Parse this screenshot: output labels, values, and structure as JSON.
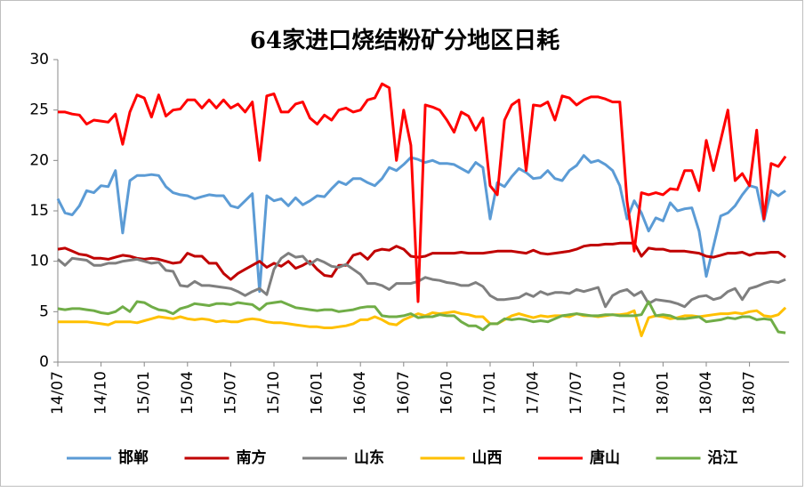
{
  "chart_data": {
    "type": "line",
    "title": "64家进口烧结粉矿分地区日耗",
    "categories": [
      "14/07",
      null,
      null,
      null,
      null,
      null,
      "14/10",
      null,
      null,
      null,
      null,
      null,
      "15/01",
      null,
      null,
      null,
      null,
      null,
      "15/04",
      null,
      null,
      null,
      null,
      null,
      "15/07",
      null,
      null,
      null,
      null,
      null,
      "15/10",
      null,
      null,
      null,
      null,
      null,
      "16/01",
      null,
      null,
      null,
      null,
      null,
      "16/04",
      null,
      null,
      null,
      null,
      null,
      "16/07",
      null,
      null,
      null,
      null,
      null,
      "16/10",
      null,
      null,
      null,
      null,
      null,
      "17/01",
      null,
      null,
      null,
      null,
      null,
      "17/04",
      null,
      null,
      null,
      null,
      null,
      "17/07",
      null,
      null,
      null,
      null,
      null,
      "17/10",
      null,
      null,
      null,
      null,
      null,
      "18/01",
      null,
      null,
      null,
      null,
      null,
      "18/04",
      null,
      null,
      null,
      null,
      null,
      "18/07",
      null,
      null,
      null,
      null,
      null
    ],
    "ylim": [
      0,
      30
    ],
    "yticks": [
      0,
      5,
      10,
      15,
      20,
      25,
      30
    ],
    "grid": false,
    "legend": "bottom",
    "series": [
      {
        "name": "邯郸",
        "color": "#5b9bd5",
        "values": [
          16.2,
          14.8,
          14.6,
          15.5,
          17,
          16.8,
          17.5,
          17.4,
          19,
          12.8,
          18,
          18.5,
          18.5,
          18.6,
          18.5,
          17.4,
          16.8,
          16.6,
          16.5,
          16.2,
          16.4,
          16.6,
          16.5,
          16.5,
          15.5,
          15.3,
          16,
          16.7,
          7,
          16.5,
          16,
          16.2,
          15.5,
          16.3,
          15.6,
          16,
          16.5,
          16.4,
          17.2,
          17.9,
          17.6,
          18.2,
          18.2,
          17.8,
          17.5,
          18.2,
          19.3,
          19,
          19.6,
          20.3,
          20.1,
          19.8,
          20,
          19.7,
          19.7,
          19.6,
          19.2,
          18.8,
          19.8,
          19.3,
          14.2,
          17.8,
          17.4,
          18.4,
          19.2,
          18.8,
          18.2,
          18.3,
          19,
          18.2,
          18,
          19,
          19.5,
          20.5,
          19.8,
          20,
          19.6,
          19,
          17.5,
          14.2,
          16,
          14.8,
          13,
          14.3,
          14,
          15.8,
          15,
          15.2,
          15.3,
          13,
          8.5,
          11.5,
          14.5,
          14.8,
          15.5,
          16.6,
          17.5,
          17.3,
          14,
          17,
          16.5,
          17
        ]
      },
      {
        "name": "南方",
        "color": "#c00000",
        "values": [
          11.2,
          11.3,
          11,
          10.7,
          10.6,
          10.3,
          10.3,
          10.2,
          10.4,
          10.6,
          10.5,
          10.3,
          10.2,
          10.3,
          10.2,
          10,
          9.8,
          9.9,
          10.8,
          10.5,
          10.5,
          9.8,
          9.8,
          8.8,
          8.2,
          8.8,
          9.2,
          9.6,
          10,
          9.4,
          9.8,
          9.5,
          10,
          9.3,
          9.6,
          10,
          9.2,
          8.6,
          8.5,
          9.6,
          9.6,
          10.6,
          10.8,
          10.2,
          11,
          11.2,
          11.1,
          11.5,
          11.2,
          10.5,
          10.4,
          10.5,
          10.8,
          10.8,
          10.8,
          10.8,
          10.9,
          10.8,
          10.8,
          10.8,
          10.9,
          11,
          11,
          11,
          10.9,
          10.8,
          11.1,
          10.8,
          10.7,
          10.8,
          10.9,
          11,
          11.2,
          11.5,
          11.6,
          11.6,
          11.7,
          11.7,
          11.8,
          11.8,
          11.8,
          10.5,
          11.3,
          11.2,
          11.2,
          11,
          11,
          11,
          10.9,
          10.8,
          10.5,
          10.4,
          10.6,
          10.8,
          10.8,
          10.9,
          10.6,
          10.8,
          10.8,
          10.9,
          10.9,
          10.4
        ]
      },
      {
        "name": "山东",
        "color": "#7f7f7f",
        "values": [
          10.2,
          9.6,
          10.3,
          10.2,
          10.1,
          9.6,
          9.6,
          9.8,
          9.8,
          10,
          10.1,
          10.2,
          10,
          9.8,
          9.9,
          9.1,
          9,
          7.6,
          7.5,
          8,
          7.6,
          7.6,
          7.5,
          7.4,
          7.3,
          7,
          6.6,
          7,
          7.3,
          6.7,
          9.2,
          10.3,
          10.8,
          10.4,
          10.5,
          9.7,
          10.2,
          9.9,
          9.5,
          9.4,
          9.7,
          9.2,
          8.7,
          7.8,
          7.8,
          7.6,
          7.2,
          7.8,
          7.8,
          7.8,
          8,
          8.4,
          8.2,
          8.1,
          7.9,
          7.8,
          7.6,
          7.6,
          7.9,
          7.5,
          6.6,
          6.2,
          6.2,
          6.3,
          6.4,
          6.8,
          6.5,
          7,
          6.7,
          6.9,
          6.9,
          6.8,
          7.2,
          7,
          7.2,
          7.4,
          5.5,
          6.6,
          7,
          7.2,
          6.6,
          7,
          5.8,
          6.2,
          6.1,
          6,
          5.8,
          5.5,
          6.2,
          6.5,
          6.6,
          6.2,
          6.4,
          7,
          7.3,
          6.2,
          7.3,
          7.5,
          7.8,
          8,
          7.9,
          8.2
        ]
      },
      {
        "name": "山西",
        "color": "#ffc000",
        "values": [
          4,
          4,
          4,
          4,
          4,
          3.9,
          3.8,
          3.7,
          4,
          4,
          4,
          3.9,
          4.1,
          4.3,
          4.5,
          4.4,
          4.3,
          4.5,
          4.3,
          4.2,
          4.3,
          4.2,
          4,
          4.1,
          4,
          4,
          4.2,
          4.3,
          4.2,
          4,
          3.9,
          3.9,
          3.8,
          3.7,
          3.6,
          3.5,
          3.5,
          3.4,
          3.4,
          3.5,
          3.6,
          3.8,
          4.2,
          4.2,
          4.5,
          4.2,
          3.8,
          3.7,
          4.2,
          4.5,
          4.8,
          4.6,
          4.9,
          4.8,
          4.9,
          5,
          4.8,
          4.7,
          4.5,
          4.5,
          3.8,
          3.8,
          4.2,
          4.6,
          4.8,
          4.6,
          4.4,
          4.6,
          4.5,
          4.6,
          4.6,
          4.5,
          4.8,
          4.6,
          4.6,
          4.5,
          4.6,
          4.7,
          4.7,
          4.8,
          5.1,
          2.6,
          4.4,
          4.6,
          4.5,
          4.3,
          4.4,
          4.6,
          4.6,
          4.5,
          4.6,
          4.7,
          4.8,
          4.8,
          4.9,
          4.8,
          5,
          5.1,
          4.6,
          4.5,
          4.7,
          5.4
        ]
      },
      {
        "name": "唐山",
        "color": "#ff0000",
        "values": [
          24.8,
          24.8,
          24.6,
          24.5,
          23.6,
          24,
          23.9,
          23.8,
          24.6,
          21.6,
          24.8,
          26.5,
          26.2,
          24.3,
          26.5,
          24.4,
          25,
          25.1,
          26,
          26,
          25.2,
          26,
          25.2,
          26,
          25.2,
          25.6,
          24.8,
          25.8,
          20,
          26.4,
          26.6,
          24.8,
          24.8,
          25.6,
          25.8,
          24.2,
          23.6,
          24.5,
          24,
          25,
          25.2,
          24.8,
          25,
          26,
          26.2,
          27.6,
          27.2,
          20,
          25,
          21.5,
          6,
          25.5,
          25.3,
          25,
          24,
          22.8,
          24.8,
          24.4,
          23,
          24.2,
          17.5,
          16.6,
          24,
          25.5,
          26,
          19,
          25.5,
          25.4,
          25.8,
          24,
          26.4,
          26.2,
          25.5,
          26,
          26.3,
          26.3,
          26.1,
          25.8,
          25.8,
          16,
          11,
          16.8,
          16.6,
          16.8,
          16.6,
          17.2,
          17.1,
          19,
          19,
          17,
          22,
          19,
          22,
          25,
          18,
          18.7,
          17.5,
          23,
          14.2,
          19.7,
          19.4,
          20.4
        ]
      },
      {
        "name": "沿江",
        "color": "#70ad47",
        "values": [
          5.3,
          5.2,
          5.3,
          5.3,
          5.2,
          5.1,
          4.9,
          4.8,
          5,
          5.5,
          5,
          6,
          5.9,
          5.5,
          5.2,
          5.1,
          4.8,
          5.3,
          5.5,
          5.8,
          5.7,
          5.6,
          5.8,
          5.8,
          5.7,
          5.9,
          5.8,
          5.7,
          5.2,
          5.8,
          5.9,
          6,
          5.7,
          5.4,
          5.3,
          5.2,
          5.1,
          5.2,
          5.2,
          5,
          5.1,
          5.2,
          5.4,
          5.5,
          5.5,
          4.6,
          4.5,
          4.5,
          4.6,
          4.8,
          4.4,
          4.5,
          4.5,
          4.7,
          4.6,
          4.6,
          4,
          3.6,
          3.6,
          3.2,
          3.8,
          3.8,
          4.3,
          4.2,
          4.3,
          4.2,
          4,
          4.1,
          4,
          4.3,
          4.6,
          4.7,
          4.8,
          4.7,
          4.6,
          4.6,
          4.7,
          4.7,
          4.6,
          4.6,
          4.6,
          4.7,
          6,
          4.6,
          4.7,
          4.6,
          4.3,
          4.3,
          4.4,
          4.5,
          4,
          4.1,
          4.2,
          4.4,
          4.3,
          4.5,
          4.5,
          4.2,
          4.3,
          4.2,
          3,
          2.9
        ]
      }
    ]
  }
}
